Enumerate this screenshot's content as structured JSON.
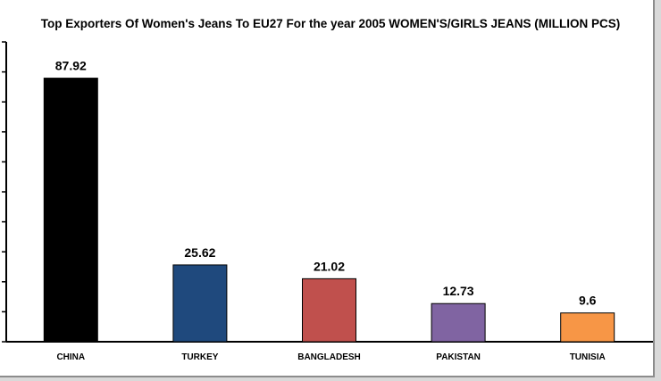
{
  "chart_data": {
    "type": "bar",
    "title": "Top Exporters Of Women's Jeans To EU27 For the year 2005 WOMEN'S/GIRLS  JEANS (MILLION PCS)",
    "categories": [
      "CHINA",
      "TURKEY",
      "BANGLADESH",
      "PAKISTAN",
      "TUNISIA"
    ],
    "values": [
      87.92,
      25.62,
      21.02,
      12.73,
      9.6
    ],
    "value_labels": [
      "87.92",
      "25.62",
      "21.02",
      "12.73",
      "9.6"
    ],
    "colors": [
      "#000000",
      "#1f497d",
      "#c0504d",
      "#8064a2",
      "#f79646"
    ],
    "xlabel": "",
    "ylabel": "",
    "ylim": [
      0,
      100
    ],
    "yticks": [
      0,
      10,
      20,
      30,
      40,
      50,
      60,
      70,
      80,
      90,
      100
    ],
    "y_tick_labels_shown": false,
    "grid": false,
    "legend": "none"
  }
}
